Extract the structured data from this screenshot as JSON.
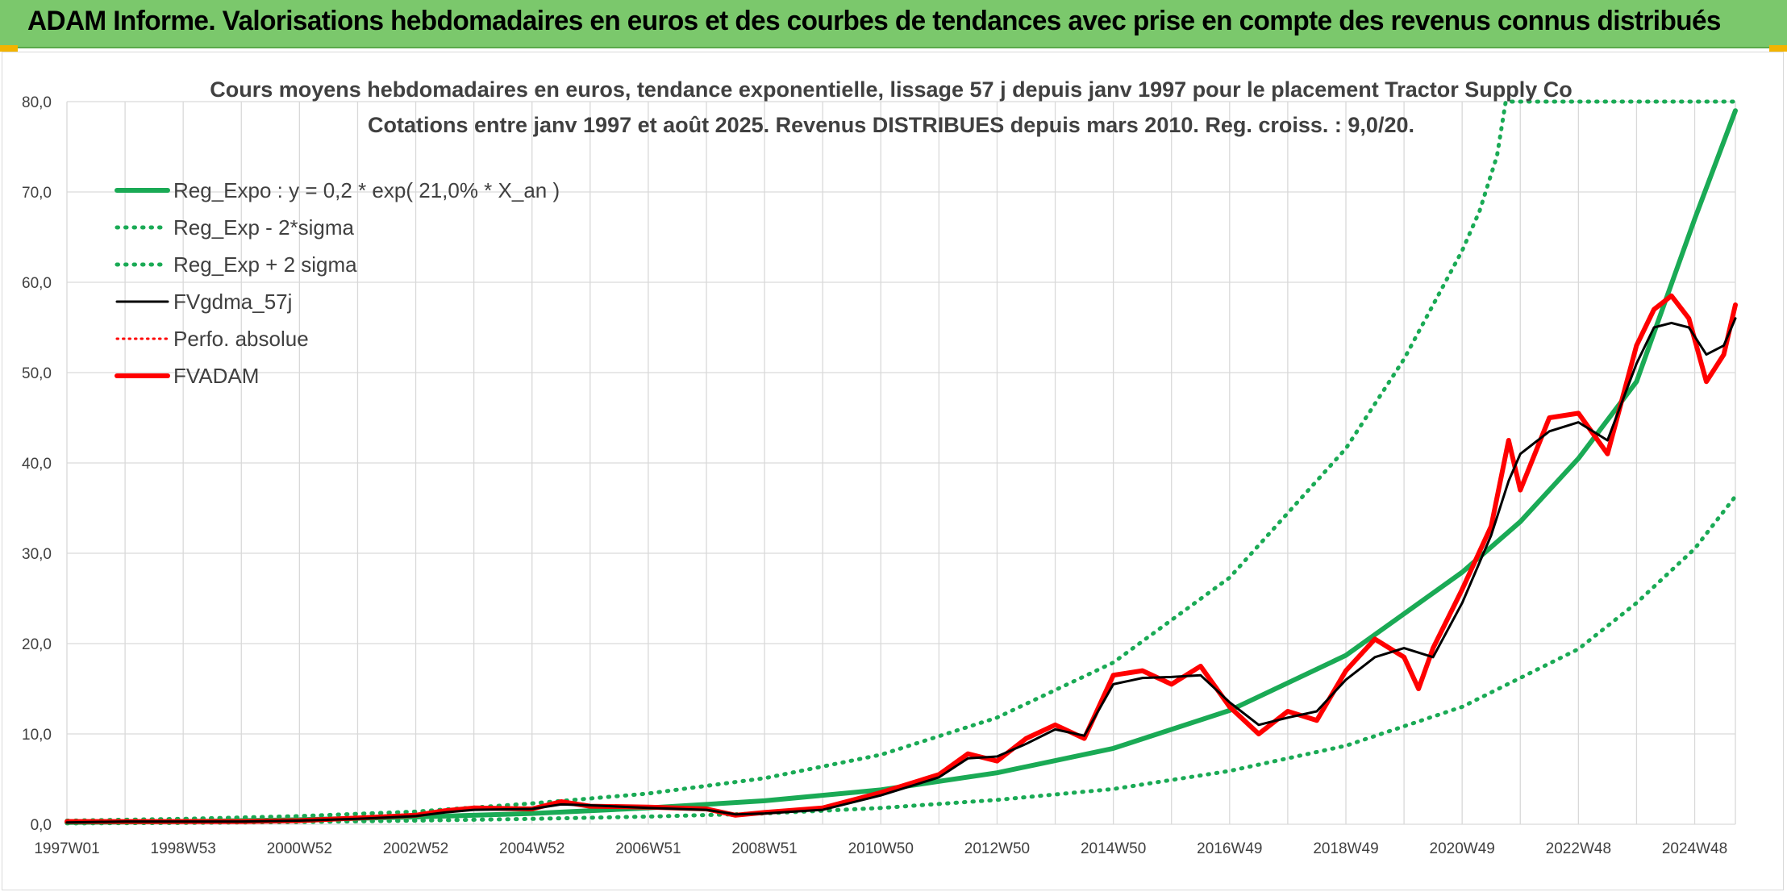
{
  "header": {
    "title": "ADAM Informe. Valorisations hebdomadaires en euros et des courbes de tendances avec prise en compte des revenus connus distribués"
  },
  "colors": {
    "header_bg": "#7bc86c",
    "trend": "#1aaa55",
    "band": "#1aaa55",
    "gdma": "#000000",
    "fvadam": "#ff0000",
    "perfo": "#ff0000"
  },
  "chart_data": {
    "type": "line",
    "title_line1": "Cours moyens hebdomadaires en euros, tendance exponentielle, lissage 57 j depuis janv 1997 pour le placement Tractor Supply Co",
    "title_line2": "Cotations entre janv 1997 et août 2025. Revenus DISTRIBUES depuis mars 2010. Reg. croiss. : 9,0/20.",
    "ylim": [
      0,
      80
    ],
    "y_ticks": [
      "0,0",
      "10,0",
      "20,0",
      "30,0",
      "40,0",
      "50,0",
      "60,0",
      "70,0",
      "80,0"
    ],
    "x_range": [
      1997.0,
      2025.7
    ],
    "x_ticks": [
      {
        "label": "1997W01",
        "year": 1997.0
      },
      {
        "label": "1998W53",
        "year": 1999.0
      },
      {
        "label": "2000W52",
        "year": 2001.0
      },
      {
        "label": "2002W52",
        "year": 2003.0
      },
      {
        "label": "2004W52",
        "year": 2005.0
      },
      {
        "label": "2006W51",
        "year": 2007.0
      },
      {
        "label": "2008W51",
        "year": 2009.0
      },
      {
        "label": "2010W50",
        "year": 2011.0
      },
      {
        "label": "2012W50",
        "year": 2013.0
      },
      {
        "label": "2014W50",
        "year": 2015.0
      },
      {
        "label": "2016W49",
        "year": 2017.0
      },
      {
        "label": "2018W49",
        "year": 2019.0
      },
      {
        "label": "2020W49",
        "year": 2021.0
      },
      {
        "label": "2022W48",
        "year": 2023.0
      },
      {
        "label": "2024W48",
        "year": 2025.0
      }
    ],
    "legend": [
      {
        "label": "Reg_Expo : y = 0,2 * exp( 21,0% *  X_an )",
        "style": "solid",
        "color": "#1aaa55"
      },
      {
        "label": "Reg_Exp - 2*sigma",
        "style": "dotted",
        "color": "#1aaa55"
      },
      {
        "label": "Reg_Exp + 2 sigma",
        "style": "dotted",
        "color": "#1aaa55"
      },
      {
        "label": "FVgdma_57j",
        "style": "solid-thin",
        "color": "#000000"
      },
      {
        "label": "Perfo. absolue",
        "style": "dotted-thin",
        "color": "#ff0000"
      },
      {
        "label": "FVADAM",
        "style": "solid",
        "color": "#ff0000"
      }
    ],
    "series": [
      {
        "name": "Reg_Expo : y = 0,2 * exp( 21,0% *  X_an )",
        "x": [
          1997.0,
          1999.0,
          2001.0,
          2003.0,
          2005.0,
          2007.0,
          2009.0,
          2011.0,
          2013.0,
          2015.0,
          2017.0,
          2019.0,
          2021.0,
          2022.0,
          2023.0,
          2024.0,
          2025.0,
          2025.7
        ],
        "y": [
          0.2,
          0.3,
          0.5,
          0.8,
          1.2,
          1.8,
          2.6,
          3.8,
          5.7,
          8.4,
          12.6,
          18.7,
          27.9,
          33.5,
          40.5,
          49.0,
          67.0,
          79.0
        ]
      },
      {
        "name": "Reg_Exp - 2*sigma",
        "x": [
          1997.0,
          1999.0,
          2001.0,
          2003.0,
          2005.0,
          2007.0,
          2009.0,
          2011.0,
          2013.0,
          2015.0,
          2017.0,
          2019.0,
          2021.0,
          2023.0,
          2024.0,
          2025.0,
          2025.7
        ],
        "y": [
          0.1,
          0.15,
          0.25,
          0.4,
          0.6,
          0.85,
          1.2,
          1.8,
          2.7,
          3.9,
          5.9,
          8.7,
          13.0,
          19.4,
          24.5,
          30.5,
          36.3
        ]
      },
      {
        "name": "Reg_Exp + 2 sigma",
        "x": [
          1997.0,
          1999.0,
          2001.0,
          2003.0,
          2005.0,
          2007.0,
          2009.0,
          2011.0,
          2013.0,
          2015.0,
          2017.0,
          2019.0,
          2020.0,
          2021.0,
          2021.3,
          2021.6,
          2021.75,
          2025.7
        ],
        "y": [
          0.4,
          0.6,
          0.9,
          1.4,
          2.3,
          3.4,
          5.1,
          7.7,
          11.8,
          17.9,
          27.3,
          41.6,
          51.5,
          63.5,
          67.9,
          74.0,
          80.0,
          80.0
        ]
      },
      {
        "name": "FVgdma_57j",
        "x": [
          1997.0,
          1998.0,
          1999.0,
          2000.0,
          2001.0,
          2002.0,
          2003.0,
          2003.5,
          2004.0,
          2005.0,
          2005.5,
          2006.0,
          2007.0,
          2008.0,
          2008.5,
          2009.0,
          2010.0,
          2011.0,
          2012.0,
          2012.5,
          2013.0,
          2013.5,
          2014.0,
          2014.5,
          2015.0,
          2015.5,
          2016.0,
          2016.5,
          2017.0,
          2017.5,
          2018.0,
          2018.5,
          2019.0,
          2019.5,
          2020.0,
          2020.5,
          2021.0,
          2021.5,
          2021.8,
          2022.0,
          2022.5,
          2023.0,
          2023.5,
          2024.0,
          2024.3,
          2024.6,
          2024.9,
          2025.2,
          2025.5,
          2025.7
        ],
        "y": [
          0.2,
          0.3,
          0.3,
          0.3,
          0.4,
          0.6,
          0.9,
          1.3,
          1.6,
          1.7,
          2.2,
          2.1,
          1.8,
          1.6,
          1.1,
          1.2,
          1.6,
          3.2,
          5.2,
          7.3,
          7.5,
          8.9,
          10.5,
          9.8,
          15.5,
          16.2,
          16.3,
          16.5,
          13.5,
          11.0,
          11.8,
          12.5,
          16.0,
          18.5,
          19.5,
          18.5,
          24.5,
          32.0,
          38.0,
          41.0,
          43.5,
          44.5,
          42.5,
          51.0,
          55.0,
          55.5,
          55.0,
          52.0,
          53.0,
          56.0
        ]
      },
      {
        "name": "FVADAM",
        "x": [
          1997.0,
          1998.0,
          1999.0,
          2000.0,
          2001.0,
          2002.0,
          2003.0,
          2003.5,
          2004.0,
          2005.0,
          2005.5,
          2006.0,
          2007.0,
          2008.0,
          2008.5,
          2009.0,
          2010.0,
          2011.0,
          2012.0,
          2012.5,
          2013.0,
          2013.5,
          2014.0,
          2014.5,
          2015.0,
          2015.5,
          2016.0,
          2016.5,
          2017.0,
          2017.5,
          2018.0,
          2018.5,
          2019.0,
          2019.5,
          2020.0,
          2020.25,
          2020.5,
          2021.0,
          2021.5,
          2021.8,
          2022.0,
          2022.5,
          2023.0,
          2023.5,
          2024.0,
          2024.3,
          2024.6,
          2024.9,
          2025.2,
          2025.5,
          2025.7
        ],
        "y": [
          0.3,
          0.3,
          0.3,
          0.3,
          0.4,
          0.7,
          1.0,
          1.5,
          1.8,
          1.7,
          2.5,
          2.0,
          1.9,
          1.7,
          1.0,
          1.3,
          1.8,
          3.5,
          5.5,
          7.8,
          7.0,
          9.5,
          11.0,
          9.5,
          16.5,
          17.0,
          15.5,
          17.5,
          13.0,
          10.0,
          12.5,
          11.5,
          17.0,
          20.5,
          18.5,
          15.0,
          19.5,
          26.0,
          33.0,
          42.5,
          37.0,
          45.0,
          45.5,
          41.0,
          53.0,
          57.0,
          58.5,
          56.0,
          49.0,
          52.0,
          57.5
        ]
      }
    ]
  }
}
